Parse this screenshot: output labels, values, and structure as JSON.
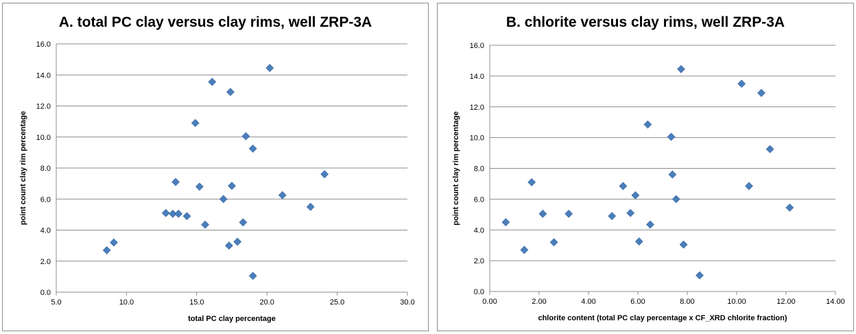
{
  "chart_data": [
    {
      "type": "scatter",
      "title": "A. total PC clay versus clay rims, well ZRP-3A",
      "xlabel": "total PC clay percentage",
      "ylabel": "point count clay rim percentage",
      "xlim": [
        5.0,
        30.0
      ],
      "ylim": [
        0.0,
        16.0
      ],
      "xticks": [
        "5.0",
        "10.0",
        "15.0",
        "20.0",
        "25.0",
        "30.0"
      ],
      "yticks": [
        "0.0",
        "2.0",
        "4.0",
        "6.0",
        "8.0",
        "10.0",
        "12.0",
        "14.0",
        "16.0"
      ],
      "grid": "horizontal",
      "marker_color": "#4a7ebb",
      "points": [
        {
          "x": 8.6,
          "y": 2.7
        },
        {
          "x": 9.1,
          "y": 3.2
        },
        {
          "x": 12.8,
          "y": 5.1
        },
        {
          "x": 13.3,
          "y": 5.05
        },
        {
          "x": 13.7,
          "y": 5.05
        },
        {
          "x": 14.3,
          "y": 4.9
        },
        {
          "x": 13.5,
          "y": 7.1
        },
        {
          "x": 15.2,
          "y": 6.8
        },
        {
          "x": 15.6,
          "y": 4.35
        },
        {
          "x": 14.9,
          "y": 10.9
        },
        {
          "x": 16.1,
          "y": 13.55
        },
        {
          "x": 17.4,
          "y": 12.9
        },
        {
          "x": 16.9,
          "y": 6.0
        },
        {
          "x": 17.5,
          "y": 6.85
        },
        {
          "x": 17.3,
          "y": 3.0
        },
        {
          "x": 17.9,
          "y": 3.25
        },
        {
          "x": 18.3,
          "y": 4.5
        },
        {
          "x": 18.5,
          "y": 10.05
        },
        {
          "x": 19.0,
          "y": 9.25
        },
        {
          "x": 19.0,
          "y": 1.05
        },
        {
          "x": 20.2,
          "y": 14.45
        },
        {
          "x": 21.1,
          "y": 6.25
        },
        {
          "x": 23.1,
          "y": 5.5
        },
        {
          "x": 24.1,
          "y": 7.6
        }
      ]
    },
    {
      "type": "scatter",
      "title": "B. chlorite versus clay rims, well ZRP-3A",
      "xlabel": "chlorite content (total PC clay percentage x CF_XRD chlorite fraction)",
      "ylabel": "point count clay rim percentage",
      "xlim": [
        0.0,
        14.0
      ],
      "ylim": [
        0.0,
        16.0
      ],
      "xticks": [
        "0.00",
        "2.00",
        "4.00",
        "6.00",
        "8.00",
        "10.00",
        "12.00",
        "14.00"
      ],
      "yticks": [
        "0.0",
        "2.0",
        "4.0",
        "6.0",
        "8.0",
        "10.0",
        "12.0",
        "14.0",
        "16.0"
      ],
      "grid": "horizontal",
      "marker_color": "#4a7ebb",
      "points": [
        {
          "x": 0.65,
          "y": 4.5
        },
        {
          "x": 1.4,
          "y": 2.7
        },
        {
          "x": 1.7,
          "y": 7.1
        },
        {
          "x": 2.15,
          "y": 5.05
        },
        {
          "x": 2.6,
          "y": 3.2
        },
        {
          "x": 3.2,
          "y": 5.05
        },
        {
          "x": 4.95,
          "y": 4.9
        },
        {
          "x": 5.4,
          "y": 6.85
        },
        {
          "x": 5.7,
          "y": 5.1
        },
        {
          "x": 5.9,
          "y": 6.25
        },
        {
          "x": 6.05,
          "y": 3.25
        },
        {
          "x": 6.4,
          "y": 10.85
        },
        {
          "x": 6.5,
          "y": 4.35
        },
        {
          "x": 7.35,
          "y": 10.05
        },
        {
          "x": 7.4,
          "y": 7.6
        },
        {
          "x": 7.55,
          "y": 6.0
        },
        {
          "x": 7.75,
          "y": 14.45
        },
        {
          "x": 7.85,
          "y": 3.05
        },
        {
          "x": 8.5,
          "y": 1.05
        },
        {
          "x": 10.2,
          "y": 13.5
        },
        {
          "x": 10.5,
          "y": 6.85
        },
        {
          "x": 11.0,
          "y": 12.9
        },
        {
          "x": 11.35,
          "y": 9.25
        },
        {
          "x": 12.15,
          "y": 5.45
        }
      ]
    }
  ]
}
